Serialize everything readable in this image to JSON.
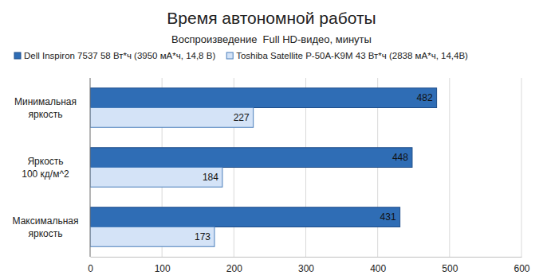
{
  "chart_data": {
    "type": "bar",
    "orientation": "horizontal",
    "title": "Время автономной работы",
    "subtitle": "Воспроизведение  Full HD-видео, минуты",
    "categories": [
      "Минимальная яркость",
      "Яркость 100 кд/м^2",
      "Максимальная яркость"
    ],
    "series": [
      {
        "name": "Dell Inspiron 7537 58 Вт*ч (3950 мА*ч, 14,8 В)",
        "color": "#2f6db5",
        "values": [
          482,
          448,
          431
        ]
      },
      {
        "name": "Toshiba Satellite P-50A-K9M 43 Вт*ч (2838 мА*ч, 14,4В)",
        "color": "#d4e3f7",
        "values": [
          227,
          184,
          173
        ]
      }
    ],
    "xlim": [
      0,
      600
    ],
    "xticks": [
      0,
      100,
      200,
      300,
      400,
      500,
      600
    ],
    "grid": true,
    "legend": "top",
    "data_labels": true
  }
}
